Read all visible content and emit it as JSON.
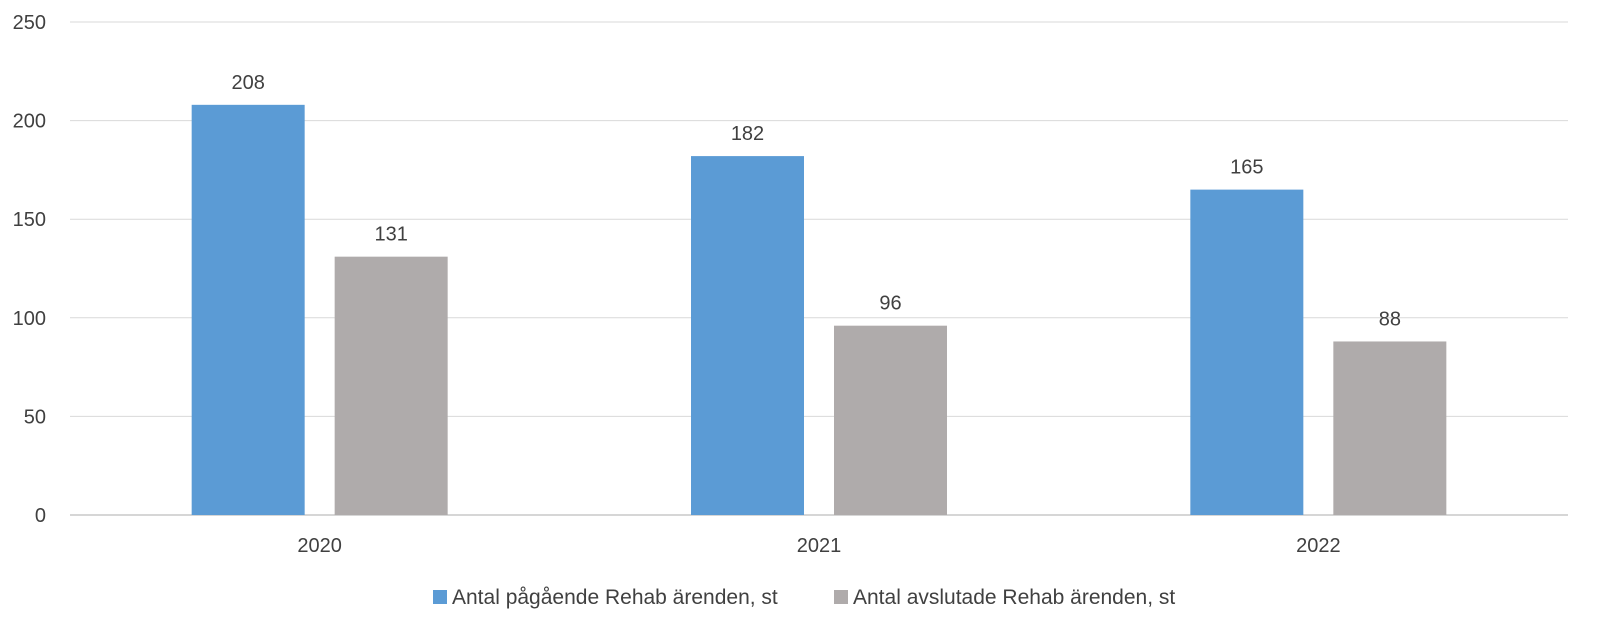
{
  "chart_data": {
    "type": "bar",
    "categories": [
      "2020",
      "2021",
      "2022"
    ],
    "series": [
      {
        "name": "Antal pågående Rehab ärenden, st",
        "values": [
          208,
          182,
          165
        ],
        "color": "#5B9BD5"
      },
      {
        "name": "Antal avslutade Rehab ärenden, st",
        "values": [
          131,
          96,
          88
        ],
        "color": "#AFABAB"
      }
    ],
    "ylim": [
      0,
      250
    ],
    "yticks": [
      "0",
      "50",
      "100",
      "150",
      "200",
      "250"
    ],
    "grid": true,
    "legend_position": "bottom",
    "data_labels": true
  }
}
